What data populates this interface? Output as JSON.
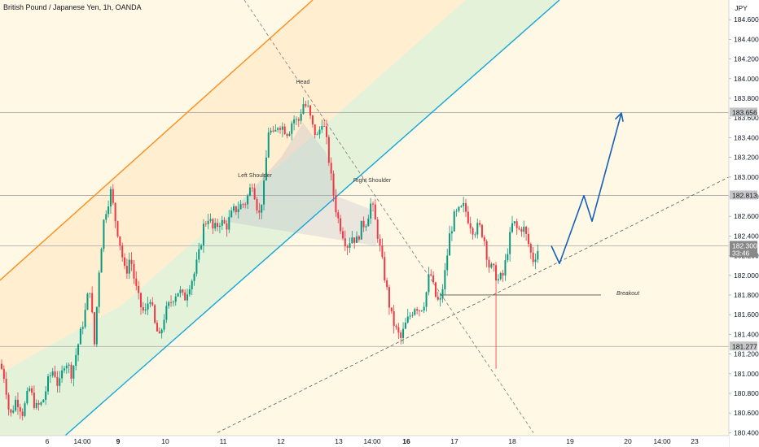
{
  "header": {
    "title": "British Pound / Japanese Yen, 1h, OANDA"
  },
  "chart_data": {
    "type": "candlestick",
    "symbol": "British Pound / Japanese Yen",
    "interval": "1h",
    "source": "OANDA",
    "currency": "JPY",
    "y_range": [
      180.37,
      184.8
    ],
    "y_ticks": [
      "184.600",
      "184.400",
      "184.200",
      "184.000",
      "183.800",
      "183.600",
      "183.400",
      "183.200",
      "183.000",
      "182.800",
      "182.600",
      "182.400",
      "182.200",
      "182.000",
      "181.800",
      "181.600",
      "181.400",
      "181.200",
      "181.000",
      "180.800",
      "180.600",
      "180.400"
    ],
    "x_ticks": [
      {
        "label": "6",
        "t": 58,
        "bold": false
      },
      {
        "label": "14:00",
        "t": 101,
        "bold": false
      },
      {
        "label": "9",
        "t": 145,
        "bold": true
      },
      {
        "label": "10",
        "t": 203,
        "bold": false
      },
      {
        "label": "11",
        "t": 274,
        "bold": false
      },
      {
        "label": "12",
        "t": 345,
        "bold": false
      },
      {
        "label": "13",
        "t": 416,
        "bold": false
      },
      {
        "label": "14:00",
        "t": 457,
        "bold": false
      },
      {
        "label": "16",
        "t": 499,
        "bold": true
      },
      {
        "label": "17",
        "t": 558,
        "bold": false
      },
      {
        "label": "18",
        "t": 629,
        "bold": false
      },
      {
        "label": "19",
        "t": 700,
        "bold": false
      },
      {
        "label": "20",
        "t": 771,
        "bold": false
      },
      {
        "label": "14:00",
        "t": 813,
        "bold": false
      },
      {
        "label": "23",
        "t": 853,
        "bold": false
      }
    ],
    "price_labels": [
      {
        "price": 183.656,
        "text": "183.656",
        "style": "level"
      },
      {
        "price": 182.813,
        "text": "182.813",
        "style": "level"
      },
      {
        "price": 182.3,
        "text": "182.300",
        "sub": "33:46",
        "style": "current"
      },
      {
        "price": 181.277,
        "text": "181.277",
        "style": "level"
      }
    ],
    "horizontal_levels": [
      183.656,
      182.813,
      182.3,
      181.277
    ],
    "annotations": [
      {
        "text": "Head",
        "t": 372,
        "p": 183.95
      },
      {
        "text": "Left Shoulder",
        "t": 313,
        "p": 183.0
      },
      {
        "text": "Right Shoulder",
        "t": 457,
        "p": 182.95
      },
      {
        "text": "Breakout",
        "t": 757,
        "p": 181.8
      }
    ],
    "colors": {
      "background": "#fff8e4",
      "up": "#089981",
      "down": "#f23645",
      "channel_top": "#ff8c1a",
      "channel_bottom": "#13a6d9",
      "projection": "#1560bd",
      "grid_level": "#a8a8a8"
    },
    "candle_waypoints": [
      [
        0,
        181.1
      ],
      [
        6,
        180.95
      ],
      [
        12,
        180.55
      ],
      [
        20,
        180.75
      ],
      [
        28,
        180.6
      ],
      [
        36,
        180.85
      ],
      [
        44,
        180.65
      ],
      [
        52,
        180.7
      ],
      [
        60,
        180.95
      ],
      [
        66,
        181.05
      ],
      [
        72,
        180.85
      ],
      [
        80,
        181.15
      ],
      [
        88,
        181.0
      ],
      [
        96,
        181.3
      ],
      [
        104,
        181.6
      ],
      [
        110,
        181.9
      ],
      [
        116,
        181.3
      ],
      [
        122,
        182.1
      ],
      [
        128,
        182.6
      ],
      [
        136,
        182.85
      ],
      [
        142,
        182.55
      ],
      [
        148,
        182.3
      ],
      [
        154,
        182.0
      ],
      [
        160,
        182.2
      ],
      [
        166,
        181.9
      ],
      [
        172,
        181.7
      ],
      [
        178,
        181.6
      ],
      [
        184,
        181.8
      ],
      [
        190,
        181.5
      ],
      [
        196,
        181.35
      ],
      [
        202,
        181.6
      ],
      [
        208,
        181.7
      ],
      [
        214,
        181.8
      ],
      [
        220,
        181.85
      ],
      [
        226,
        181.75
      ],
      [
        232,
        181.9
      ],
      [
        238,
        182.0
      ],
      [
        244,
        182.2
      ],
      [
        250,
        182.5
      ],
      [
        256,
        182.6
      ],
      [
        262,
        182.45
      ],
      [
        270,
        182.55
      ],
      [
        278,
        182.5
      ],
      [
        286,
        182.65
      ],
      [
        294,
        182.7
      ],
      [
        302,
        182.75
      ],
      [
        310,
        182.95
      ],
      [
        318,
        182.6
      ],
      [
        324,
        182.9
      ],
      [
        330,
        183.5
      ],
      [
        336,
        183.4
      ],
      [
        342,
        183.55
      ],
      [
        348,
        183.5
      ],
      [
        354,
        183.45
      ],
      [
        360,
        183.6
      ],
      [
        366,
        183.55
      ],
      [
        372,
        183.75
      ],
      [
        378,
        183.7
      ],
      [
        384,
        183.5
      ],
      [
        390,
        183.4
      ],
      [
        396,
        183.6
      ],
      [
        402,
        183.3
      ],
      [
        408,
        182.9
      ],
      [
        414,
        182.6
      ],
      [
        420,
        182.45
      ],
      [
        426,
        182.3
      ],
      [
        432,
        182.4
      ],
      [
        438,
        182.35
      ],
      [
        444,
        182.5
      ],
      [
        450,
        182.55
      ],
      [
        456,
        182.75
      ],
      [
        462,
        182.5
      ],
      [
        468,
        182.2
      ],
      [
        474,
        181.9
      ],
      [
        480,
        181.6
      ],
      [
        486,
        181.45
      ],
      [
        492,
        181.35
      ],
      [
        498,
        181.5
      ],
      [
        504,
        181.6
      ],
      [
        510,
        181.7
      ],
      [
        516,
        181.65
      ],
      [
        522,
        181.75
      ],
      [
        528,
        182.05
      ],
      [
        534,
        181.8
      ],
      [
        540,
        181.7
      ],
      [
        546,
        182.0
      ],
      [
        552,
        182.4
      ],
      [
        558,
        182.6
      ],
      [
        564,
        182.65
      ],
      [
        570,
        182.7
      ],
      [
        576,
        182.55
      ],
      [
        582,
        182.45
      ],
      [
        588,
        182.5
      ],
      [
        594,
        182.4
      ],
      [
        600,
        182.1
      ],
      [
        606,
        182.05
      ],
      [
        612,
        181.95
      ],
      [
        618,
        182.0
      ],
      [
        624,
        182.3
      ],
      [
        630,
        182.55
      ],
      [
        636,
        182.45
      ],
      [
        642,
        182.5
      ],
      [
        648,
        182.35
      ],
      [
        654,
        182.15
      ],
      [
        660,
        182.25
      ],
      [
        662,
        182.3
      ]
    ],
    "candles_extreme": [
      {
        "t": 608,
        "low": 181.05
      }
    ],
    "channel": {
      "top": [
        [
          0,
          181.95
        ],
        [
          384,
          184.8
        ]
      ],
      "bottom": [
        [
          80,
          180.37
        ],
        [
          687,
          184.8
        ]
      ]
    },
    "channel_fill": [
      {
        "name": "orange-zone",
        "poly": [
          [
            0,
            181.95
          ],
          [
            384,
            184.8
          ],
          [
            572,
            184.8
          ],
          [
            150,
            181.7
          ],
          [
            0,
            181.0
          ]
        ]
      },
      {
        "name": "green-zone",
        "poly": [
          [
            150,
            181.7
          ],
          [
            572,
            184.8
          ],
          [
            687,
            184.8
          ],
          [
            80,
            180.37
          ],
          [
            0,
            180.37
          ],
          [
            0,
            181.0
          ]
        ]
      }
    ],
    "neckline_dashed_descending": [
      [
        300,
        184.8
      ],
      [
        655,
        180.4
      ]
    ],
    "trendline_dashed_ascending": [
      [
        267,
        180.4
      ],
      [
        900,
        183.02
      ]
    ],
    "breakout_line": [
      [
        540,
        181.8
      ],
      [
        738,
        181.8
      ]
    ],
    "hs_polygon": [
      [
        275,
        182.55
      ],
      [
        345,
        183.2
      ],
      [
        372,
        183.55
      ],
      [
        400,
        183.25
      ],
      [
        415,
        182.8
      ],
      [
        462,
        182.65
      ],
      [
        462,
        182.3
      ],
      [
        350,
        182.45
      ]
    ],
    "projection": [
      [
        677,
        182.3
      ],
      [
        687,
        182.12
      ],
      [
        717,
        182.81
      ],
      [
        727,
        182.55
      ],
      [
        763,
        183.65
      ]
    ]
  }
}
